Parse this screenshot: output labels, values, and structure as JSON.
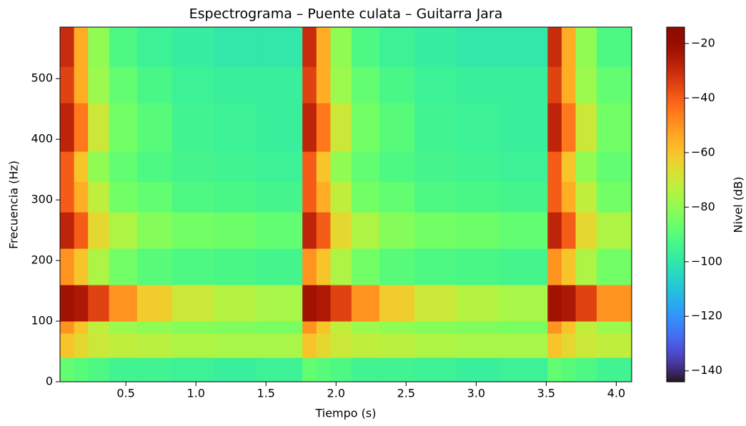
{
  "chart_data": {
    "type": "heatmap",
    "title": "Espectrograma – Puente culata – Guitarra Jara",
    "x_label": "Tiempo (s)",
    "y_label": "Frecuencia (Hz)",
    "colorbar_label": "Nivel (dB)",
    "colormap": "turbo",
    "xlim": [
      0.03,
      4.11
    ],
    "ylim": [
      0,
      585
    ],
    "clim": [
      -144,
      -14
    ],
    "xticks": [
      {
        "value": 0.5,
        "label": "0.5"
      },
      {
        "value": 1.0,
        "label": "1.0"
      },
      {
        "value": 1.5,
        "label": "1.5"
      },
      {
        "value": 2.0,
        "label": "2.0"
      },
      {
        "value": 2.5,
        "label": "2.5"
      },
      {
        "value": 3.0,
        "label": "3.0"
      },
      {
        "value": 3.5,
        "label": "3.5"
      },
      {
        "value": 4.0,
        "label": "4.0"
      }
    ],
    "yticks": [
      0,
      100,
      200,
      300,
      400,
      500
    ],
    "cticks": [
      {
        "value": -20,
        "label": "−20"
      },
      {
        "value": -40,
        "label": "−40"
      },
      {
        "value": -60,
        "label": "−60"
      },
      {
        "value": -80,
        "label": "−80"
      },
      {
        "value": -100,
        "label": "−100"
      },
      {
        "value": -120,
        "label": "−120"
      },
      {
        "value": -140,
        "label": "−140"
      }
    ],
    "x_edges": [
      0.03,
      0.13,
      0.23,
      0.38,
      0.58,
      0.83,
      1.13,
      1.43,
      1.76,
      1.86,
      1.96,
      2.11,
      2.31,
      2.56,
      2.86,
      3.16,
      3.51,
      3.61,
      3.71,
      3.86,
      4.11
    ],
    "y_edges": [
      0,
      40,
      80,
      100,
      160,
      220,
      280,
      330,
      380,
      460,
      520,
      585
    ],
    "z": [
      [
        -88,
        -90,
        -92,
        -95,
        -95,
        -96,
        -97,
        -96,
        -88,
        -90,
        -92,
        -95,
        -95,
        -96,
        -97,
        -96,
        -88,
        -90,
        -92,
        -95
      ],
      [
        -60,
        -65,
        -70,
        -72,
        -73,
        -75,
        -76,
        -76,
        -60,
        -65,
        -70,
        -72,
        -73,
        -75,
        -76,
        -76,
        -60,
        -65,
        -70,
        -72
      ],
      [
        -50,
        -60,
        -72,
        -78,
        -80,
        -82,
        -83,
        -84,
        -50,
        -60,
        -72,
        -78,
        -80,
        -82,
        -83,
        -84,
        -50,
        -60,
        -72,
        -78
      ],
      [
        -22,
        -25,
        -35,
        -50,
        -62,
        -70,
        -74,
        -76,
        -22,
        -25,
        -35,
        -50,
        -62,
        -70,
        -74,
        -76,
        -22,
        -25,
        -35,
        -50
      ],
      [
        -50,
        -60,
        -75,
        -85,
        -90,
        -92,
        -93,
        -94,
        -50,
        -60,
        -75,
        -85,
        -90,
        -92,
        -93,
        -94,
        -50,
        -60,
        -75,
        -85
      ],
      [
        -28,
        -40,
        -65,
        -75,
        -82,
        -85,
        -86,
        -88,
        -28,
        -40,
        -65,
        -75,
        -82,
        -85,
        -86,
        -88,
        -28,
        -40,
        -65,
        -75
      ],
      [
        -40,
        -55,
        -72,
        -85,
        -88,
        -92,
        -93,
        -94,
        -40,
        -55,
        -72,
        -85,
        -88,
        -92,
        -93,
        -94,
        -40,
        -55,
        -72,
        -85
      ],
      [
        -40,
        -60,
        -80,
        -88,
        -92,
        -94,
        -95,
        -96,
        -40,
        -60,
        -80,
        -88,
        -92,
        -94,
        -95,
        -96,
        -40,
        -60,
        -80,
        -88
      ],
      [
        -28,
        -45,
        -70,
        -85,
        -90,
        -95,
        -96,
        -97,
        -28,
        -45,
        -70,
        -85,
        -90,
        -95,
        -96,
        -97,
        -28,
        -45,
        -70,
        -85
      ],
      [
        -35,
        -55,
        -78,
        -88,
        -93,
        -96,
        -97,
        -97,
        -35,
        -55,
        -78,
        -88,
        -93,
        -96,
        -97,
        -97,
        -35,
        -55,
        -78,
        -88
      ],
      [
        -30,
        -55,
        -80,
        -92,
        -96,
        -98,
        -100,
        -100,
        -30,
        -55,
        -80,
        -92,
        -96,
        -98,
        -100,
        -100,
        -30,
        -55,
        -80,
        -92
      ]
    ]
  }
}
